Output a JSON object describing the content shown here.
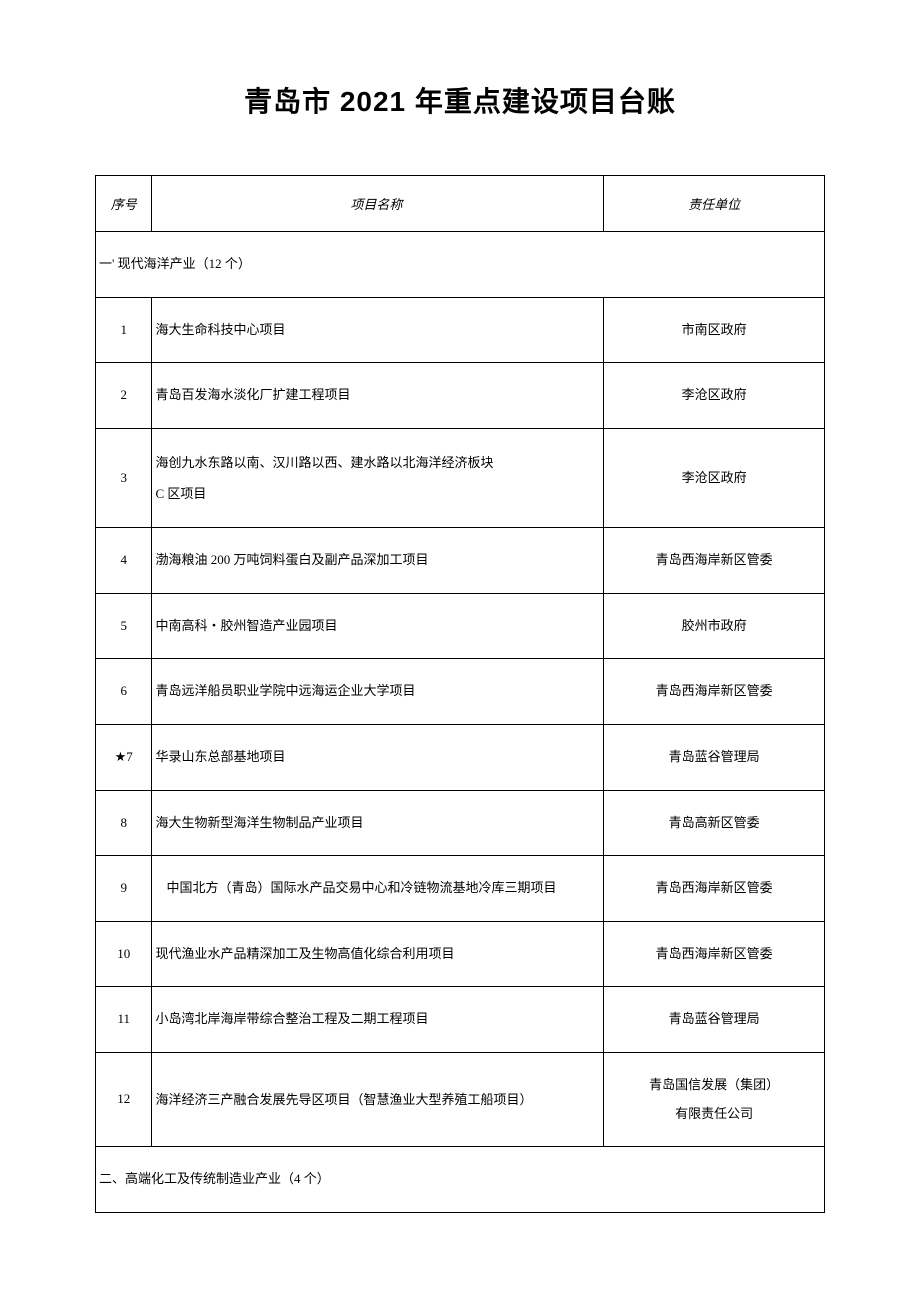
{
  "document": {
    "title": "青岛市 2021 年重点建设项目台账",
    "background_color": "#ffffff",
    "border_color": "#000000",
    "font_size_title": 28,
    "font_size_body": 13
  },
  "table": {
    "headers": {
      "col1": "序号",
      "col2": "项目名称",
      "col3": "责任单位"
    },
    "sections": [
      {
        "label": "一' 现代海洋产业（12 个）",
        "rows": [
          {
            "num": "1",
            "name": "海大生命科技中心项目",
            "unit": "市南区政府",
            "indent": false
          },
          {
            "num": "2",
            "name": "青岛百发海水淡化厂扩建工程项目",
            "unit": "李沧区政府",
            "indent": false
          },
          {
            "num": "3",
            "name": "海创九水东路以南、汉川路以西、建水路以北海洋经济板块\nC 区项目",
            "unit": "李沧区政府",
            "indent": false
          },
          {
            "num": "4",
            "name": "渤海粮油 200 万吨饲料蛋白及副产品深加工项目",
            "unit": "青岛西海岸新区管委",
            "indent": false
          },
          {
            "num": "5",
            "name": "中南高科・胶州智造产业园项目",
            "unit": "胶州市政府",
            "indent": false
          },
          {
            "num": "6",
            "name": "青岛远洋船员职业学院中远海运企业大学项目",
            "unit": "青岛西海岸新区管委",
            "indent": false
          },
          {
            "num": "★7",
            "name": "华录山东总部基地项目",
            "unit": "青岛蓝谷管理局",
            "indent": false
          },
          {
            "num": "8",
            "name": "海大生物新型海洋生物制品产业项目",
            "unit": "青岛高新区管委",
            "indent": false
          },
          {
            "num": "9",
            "name": "中国北方（青岛）国际水产品交易中心和冷链物流基地冷库三期项目",
            "unit": "青岛西海岸新区管委",
            "indent": true
          },
          {
            "num": "10",
            "name": "现代渔业水产品精深加工及生物高值化综合利用项目",
            "unit": "青岛西海岸新区管委",
            "indent": false
          },
          {
            "num": "11",
            "name": "小岛湾北岸海岸带综合整治工程及二期工程项目",
            "unit": "青岛蓝谷管理局",
            "indent": false
          },
          {
            "num": "12",
            "name": "海洋经济三产融合发展先导区项目（智慧渔业大型养殖工船项目）",
            "unit": "青岛国信发展（集团）\n有限责任公司",
            "indent": false
          }
        ]
      },
      {
        "label": "二、高端化工及传统制造业产业（4 个）",
        "rows": []
      }
    ]
  }
}
